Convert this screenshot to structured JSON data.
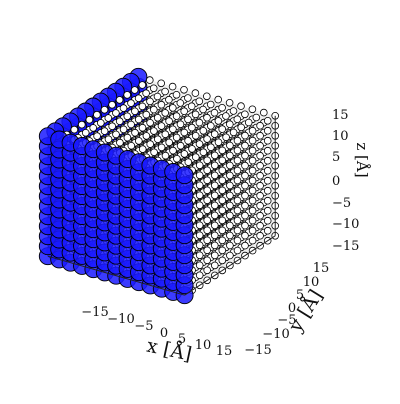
{
  "chart_data": {
    "type": "scatter",
    "projection": "3d",
    "description_of_series": "cubic lattice of atoms; surface atoms drawn as large blue spheres, interior atoms as small white spheres",
    "colors": {
      "surface": "#1a1aff",
      "interior": "#ffffff",
      "edge": "#000000",
      "pane": "#ececec"
    },
    "lattice_x": [
      -18,
      -15,
      -12,
      -9,
      -6,
      -3,
      0,
      3,
      6,
      9,
      12,
      15,
      18
    ],
    "lattice_y": [
      -18,
      -15,
      -12,
      -9,
      -6,
      -3,
      0,
      3,
      6,
      9,
      12,
      15,
      18
    ],
    "lattice_z": [
      -18,
      -15,
      -12,
      -9,
      -6,
      -3,
      0,
      3,
      6,
      9,
      12,
      15,
      18
    ],
    "xlim": [
      -18,
      18
    ],
    "ylim": [
      -18,
      18
    ],
    "zlim": [
      -18,
      18
    ],
    "grid": true,
    "xlabel": "x [Å]",
    "ylabel": "y [Å]",
    "zlabel": "z [Å]",
    "xticks": [
      "−15",
      "−10",
      "−5",
      "0",
      "5",
      "10",
      "15"
    ],
    "yticks": [
      "−15",
      "−10",
      "−5",
      "0",
      "5",
      "10",
      "15"
    ],
    "zticks": [
      "15",
      "10",
      "5",
      "0",
      "−5",
      "−10",
      "−15"
    ]
  }
}
